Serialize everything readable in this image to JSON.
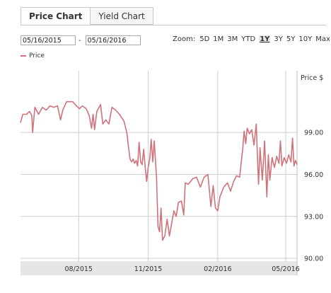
{
  "tabs": [
    {
      "label": "Price Chart",
      "active": true
    },
    {
      "label": "Yield Chart",
      "active": false
    }
  ],
  "range": {
    "from": "05/16/2015",
    "separator": "-",
    "to": "05/16/2016"
  },
  "zoom": {
    "label": "Zoom:",
    "options": [
      "5D",
      "1M",
      "3M",
      "YTD",
      "1Y",
      "3Y",
      "5Y",
      "10Y",
      "Max"
    ],
    "selected": "1Y"
  },
  "colors": {
    "series": "#d0727a",
    "grid": "#cfcfcf",
    "axis_band": "#e6e6e6"
  },
  "chart_data": {
    "type": "line",
    "ylabel": "Price $",
    "ylim": [
      89.8,
      102.5
    ],
    "yticks": [
      90,
      93,
      96,
      99
    ],
    "ytick_labels": [
      "90.00",
      "93.00",
      "96.00",
      "99.00"
    ],
    "xlim": [
      "2015-05-16",
      "2016-05-16"
    ],
    "xticks": [
      "2015-08-01",
      "2015-11-01",
      "2016-02-01",
      "2016-05-01"
    ],
    "xtick_labels": [
      "08/2015",
      "11/2015",
      "02/2016",
      "05/2016"
    ],
    "grid": true,
    "legend": "top-left",
    "series": [
      {
        "name": "Price",
        "points": [
          [
            "2015-05-16",
            99.7
          ],
          [
            "2015-05-19",
            100.3
          ],
          [
            "2015-05-24",
            100.3
          ],
          [
            "2015-05-28",
            100.5
          ],
          [
            "2015-05-31",
            100.2
          ],
          [
            "2015-06-01",
            99.0
          ],
          [
            "2015-06-04",
            100.8
          ],
          [
            "2015-06-09",
            100.3
          ],
          [
            "2015-06-14",
            100.8
          ],
          [
            "2015-06-19",
            100.6
          ],
          [
            "2015-06-24",
            100.9
          ],
          [
            "2015-06-29",
            100.8
          ],
          [
            "2015-07-04",
            100.9
          ],
          [
            "2015-07-08",
            99.9
          ],
          [
            "2015-07-11",
            100.6
          ],
          [
            "2015-07-16",
            101.2
          ],
          [
            "2015-07-24",
            101.2
          ],
          [
            "2015-07-29",
            100.9
          ],
          [
            "2015-08-02",
            100.7
          ],
          [
            "2015-08-06",
            100.9
          ],
          [
            "2015-08-11",
            100.7
          ],
          [
            "2015-08-15",
            100.2
          ],
          [
            "2015-08-18",
            99.3
          ],
          [
            "2015-08-20",
            100.3
          ],
          [
            "2015-08-22",
            99.2
          ],
          [
            "2015-08-25",
            100.5
          ],
          [
            "2015-08-30",
            101.0
          ],
          [
            "2015-09-02",
            99.6
          ],
          [
            "2015-09-06",
            99.9
          ],
          [
            "2015-09-10",
            99.6
          ],
          [
            "2015-09-14",
            100.8
          ],
          [
            "2015-09-19",
            100.6
          ],
          [
            "2015-09-24",
            100.3
          ],
          [
            "2015-09-30",
            99.8
          ],
          [
            "2015-10-04",
            98.9
          ],
          [
            "2015-10-06",
            97.9
          ],
          [
            "2015-10-08",
            97.1
          ],
          [
            "2015-10-10",
            96.9
          ],
          [
            "2015-10-12",
            97.1
          ],
          [
            "2015-10-14",
            96.8
          ],
          [
            "2015-10-16",
            97.0
          ],
          [
            "2015-10-18",
            96.6
          ],
          [
            "2015-10-20",
            98.3
          ],
          [
            "2015-10-22",
            96.9
          ],
          [
            "2015-10-24",
            96.7
          ],
          [
            "2015-10-26",
            97.8
          ],
          [
            "2015-10-28",
            96.5
          ],
          [
            "2015-10-30",
            95.5
          ],
          [
            "2015-11-01",
            96.5
          ],
          [
            "2015-11-03",
            97.1
          ],
          [
            "2015-11-05",
            98.5
          ],
          [
            "2015-11-07",
            96.9
          ],
          [
            "2015-11-09",
            98.4
          ],
          [
            "2015-11-12",
            95.8
          ],
          [
            "2015-11-14",
            92.3
          ],
          [
            "2015-11-16",
            91.9
          ],
          [
            "2015-11-18",
            93.6
          ],
          [
            "2015-11-20",
            91.3
          ],
          [
            "2015-11-23",
            91.6
          ],
          [
            "2015-11-26",
            92.8
          ],
          [
            "2015-11-29",
            91.6
          ],
          [
            "2015-12-02",
            92.5
          ],
          [
            "2015-12-05",
            93.4
          ],
          [
            "2015-12-08",
            93.0
          ],
          [
            "2015-12-11",
            94.0
          ],
          [
            "2015-12-15",
            94.1
          ],
          [
            "2015-12-18",
            93.1
          ],
          [
            "2015-12-20",
            95.4
          ],
          [
            "2015-12-24",
            95.3
          ],
          [
            "2015-12-30",
            95.7
          ],
          [
            "2016-01-04",
            95.8
          ],
          [
            "2016-01-09",
            95.1
          ],
          [
            "2016-01-14",
            95.8
          ],
          [
            "2016-01-19",
            96.0
          ],
          [
            "2016-01-23",
            93.7
          ],
          [
            "2016-01-26",
            95.2
          ],
          [
            "2016-01-29",
            93.6
          ],
          [
            "2016-02-01",
            93.4
          ],
          [
            "2016-02-04",
            94.4
          ],
          [
            "2016-02-09",
            95.1
          ],
          [
            "2016-02-14",
            95.4
          ],
          [
            "2016-02-18",
            94.8
          ],
          [
            "2016-02-22",
            95.5
          ],
          [
            "2016-02-26",
            95.9
          ],
          [
            "2016-03-01",
            95.8
          ],
          [
            "2016-03-05",
            97.8
          ],
          [
            "2016-03-07",
            99.1
          ],
          [
            "2016-03-09",
            98.2
          ],
          [
            "2016-03-11",
            99.3
          ],
          [
            "2016-03-14",
            98.9
          ],
          [
            "2016-03-17",
            99.2
          ],
          [
            "2016-03-20",
            98.1
          ],
          [
            "2016-03-23",
            99.6
          ],
          [
            "2016-03-26",
            95.3
          ],
          [
            "2016-03-28",
            97.9
          ],
          [
            "2016-03-31",
            95.6
          ],
          [
            "2016-04-03",
            98.4
          ],
          [
            "2016-04-06",
            94.4
          ],
          [
            "2016-04-08",
            97.4
          ],
          [
            "2016-04-10",
            95.6
          ],
          [
            "2016-04-13",
            97.2
          ],
          [
            "2016-04-16",
            96.5
          ],
          [
            "2016-04-19",
            97.3
          ],
          [
            "2016-04-22",
            96.8
          ],
          [
            "2016-04-24",
            98.4
          ],
          [
            "2016-04-26",
            96.6
          ],
          [
            "2016-04-29",
            97.2
          ],
          [
            "2016-05-02",
            96.8
          ],
          [
            "2016-05-05",
            97.4
          ],
          [
            "2016-05-08",
            96.9
          ],
          [
            "2016-05-10",
            98.6
          ],
          [
            "2016-05-12",
            96.6
          ],
          [
            "2016-05-14",
            97.0
          ],
          [
            "2016-05-16",
            96.7
          ]
        ]
      }
    ]
  }
}
